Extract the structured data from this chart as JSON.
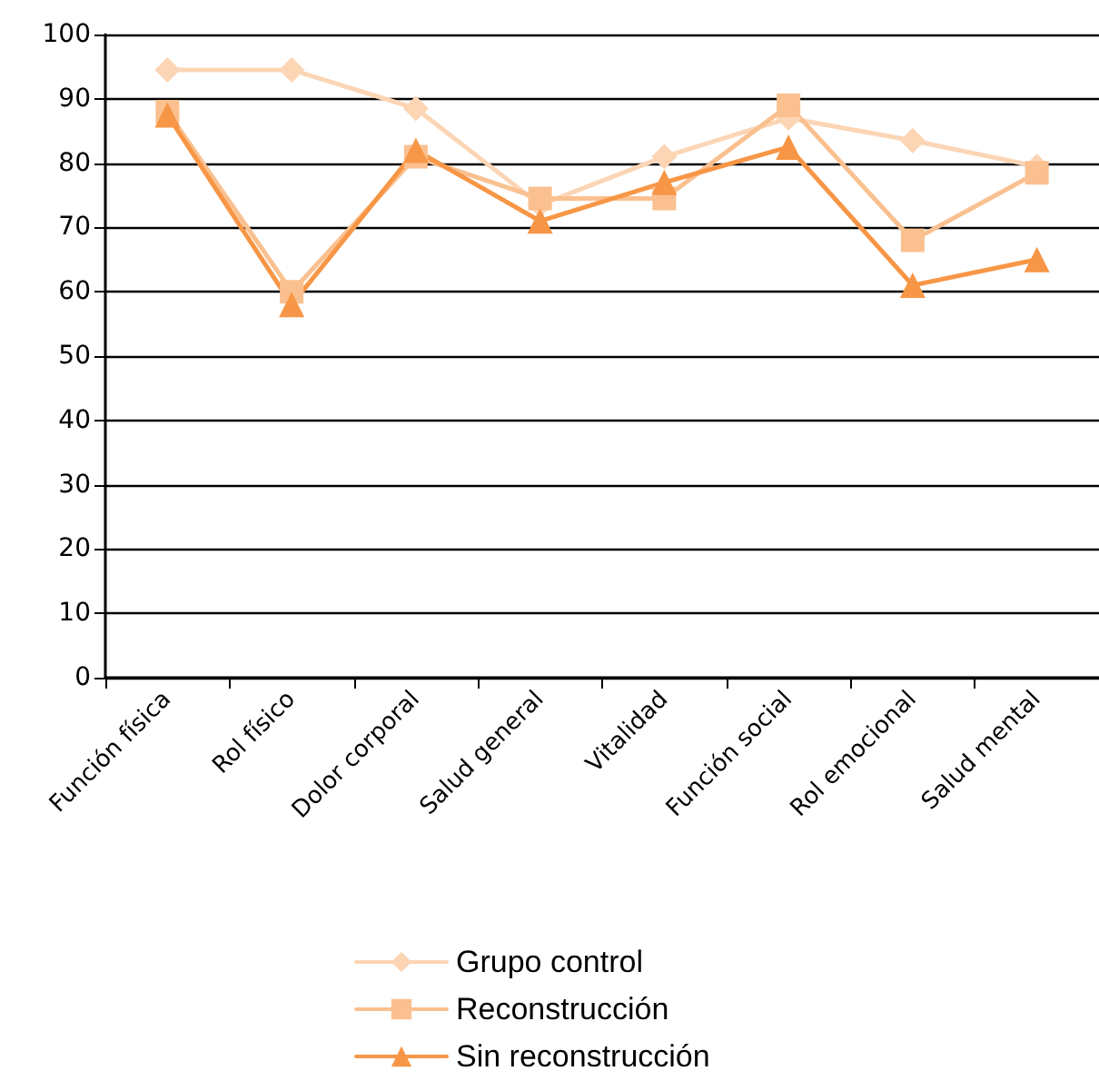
{
  "chart_data": {
    "type": "line",
    "categories": [
      "Función física",
      "Rol físico",
      "Dolor corporal",
      "Salud general",
      "Vitalidad",
      "Función social",
      "Rol emocional",
      "Salud mental"
    ],
    "series": [
      {
        "name": "Grupo control",
        "color": "#fcd5b5",
        "marker": "diamond",
        "values": [
          94.5,
          94.5,
          88.5,
          73.5,
          81,
          87,
          83.5,
          79.5
        ]
      },
      {
        "name": "Reconstrucción",
        "color": "#fac090",
        "marker": "square",
        "values": [
          88,
          60,
          81,
          74.5,
          74.5,
          89,
          68,
          78.5
        ]
      },
      {
        "name": "Sin reconstrucción",
        "color": "#f79646",
        "marker": "triangle",
        "values": [
          87.5,
          58,
          82,
          71,
          77,
          82.5,
          61,
          65
        ]
      }
    ],
    "ylim": [
      0,
      100
    ],
    "yticks": [
      0,
      10,
      20,
      30,
      40,
      50,
      60,
      70,
      80,
      90,
      100
    ],
    "grid": "y",
    "legend": "bottom",
    "line_style": "solid"
  }
}
